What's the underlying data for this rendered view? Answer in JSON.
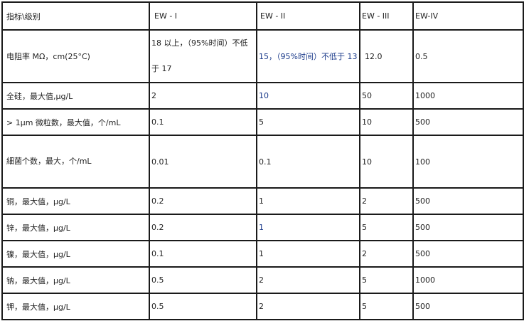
{
  "table": {
    "headers": [
      "指标\\级别",
      "EW - I",
      "EW - II",
      "EW - III",
      "EW-IV"
    ],
    "rows": [
      {
        "label": "电阻率  MΩ，cm(25°C)",
        "values": [
          "18 以上，（95%时间）不低于 17",
          "15，（95%时间）不低于 13",
          "12.0",
          "0.5"
        ]
      },
      {
        "label": "全硅，最大值,μg/L",
        "values": [
          "2",
          "10",
          "50",
          "1000"
        ]
      },
      {
        "label": "> 1μm 微粒数，最大值，个/mL",
        "values": [
          "0.1",
          "5",
          "10",
          "500"
        ]
      },
      {
        "label": "細菌个数，最大，个/mL",
        "values": [
          "0.01",
          "0.1",
          "10",
          "100"
        ]
      },
      {
        "label": "铜，最大值，μg/L",
        "values": [
          "0.2",
          "1",
          "2",
          "500"
        ]
      },
      {
        "label": "锌，最大值，μg/L",
        "values": [
          "0.2",
          "1",
          "5",
          "500"
        ]
      },
      {
        "label": "镍，最大值，μg/L",
        "values": [
          "0.1",
          "1",
          "2",
          "500"
        ]
      },
      {
        "label": "钠，最大值，μg/L",
        "values": [
          "0.5",
          "2",
          "5",
          "1000"
        ]
      },
      {
        "label": "钾，最大值，μg/L",
        "values": [
          "0.5",
          "2",
          "5",
          "500"
        ]
      }
    ]
  }
}
